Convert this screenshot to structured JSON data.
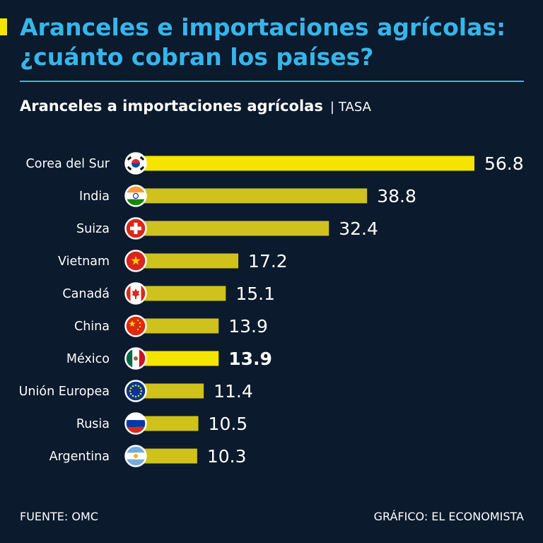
{
  "header": {
    "title_line1": "Aranceles e importaciones agrícolas:",
    "title_line2": "¿cuánto cobran los países?",
    "subtitle": "Aranceles a importaciones agrícolas",
    "separator": "|",
    "unit": "TASA"
  },
  "footer": {
    "source": "FUENTE: OMC",
    "credit": "GRÁFICO: EL ECONOMISTA"
  },
  "colors": {
    "background": "#0b1a2c",
    "title": "#35b6ea",
    "bar_highlight": "#f5e400",
    "bar_default": "#cfc21c"
  },
  "chart_data": {
    "type": "bar",
    "orientation": "horizontal",
    "categories": [
      "Corea del Sur",
      "India",
      "Suiza",
      "Vietnam",
      "Canadá",
      "China",
      "México",
      "Unión Europea",
      "Rusia",
      "Argentina"
    ],
    "values": [
      56.8,
      38.8,
      32.4,
      17.2,
      15.1,
      13.9,
      13.9,
      11.4,
      10.5,
      10.3
    ],
    "value_labels": [
      "56.8",
      "38.8",
      "32.4",
      "17.2",
      "15.1",
      "13.9",
      "13.9",
      "11.4",
      "10.5",
      "10.3"
    ],
    "flags": [
      "south-korea-flag-icon",
      "india-flag-icon",
      "switzerland-flag-icon",
      "vietnam-flag-icon",
      "canada-flag-icon",
      "china-flag-icon",
      "mexico-flag-icon",
      "eu-flag-icon",
      "russia-flag-icon",
      "argentina-flag-icon"
    ],
    "highlighted": [
      "Corea del Sur",
      "México"
    ],
    "bold_value": [
      "México"
    ],
    "xlim": [
      0,
      56.8
    ],
    "grid": false,
    "legend": "none"
  }
}
